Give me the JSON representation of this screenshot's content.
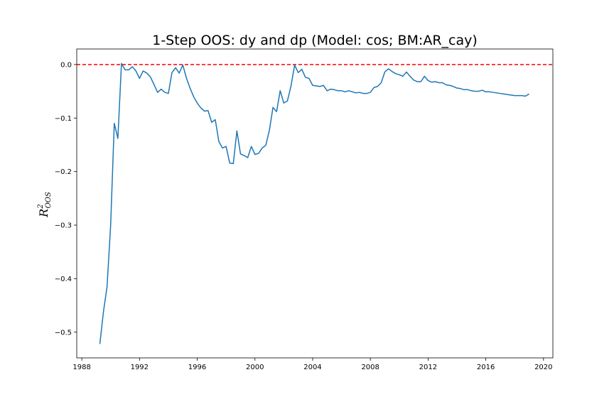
{
  "chart_data": {
    "type": "line",
    "title": "1-Step OOS: dy and dp (Model: cos; BM:AR_cay)",
    "ylabel": {
      "main": "R",
      "sup": "2",
      "sub": "OOS"
    },
    "xlabel": "",
    "xlim": [
      1987.65,
      2020.65
    ],
    "ylim": [
      -0.548,
      0.029
    ],
    "xticks": [
      "1988",
      "1992",
      "1996",
      "2000",
      "2004",
      "2008",
      "2012",
      "2016",
      "2020"
    ],
    "yticks": [
      "0.0",
      "−0.1",
      "−0.2",
      "−0.3",
      "−0.4",
      "−0.5"
    ],
    "grid": false,
    "legend": "none",
    "reference_line": {
      "y": 0.0,
      "color": "#ff0000",
      "style": "dashed"
    },
    "series": [
      {
        "color": "#1f77b4",
        "x": [
          1989.25,
          1989.5,
          1989.75,
          1990.0,
          1990.25,
          1990.5,
          1990.75,
          1991.0,
          1991.25,
          1991.5,
          1991.75,
          1992.0,
          1992.25,
          1992.5,
          1992.75,
          1993.0,
          1993.25,
          1993.5,
          1993.75,
          1994.0,
          1994.25,
          1994.5,
          1994.75,
          1995.0,
          1995.25,
          1995.5,
          1995.75,
          1996.0,
          1996.25,
          1996.5,
          1996.75,
          1997.0,
          1997.25,
          1997.5,
          1997.75,
          1998.0,
          1998.25,
          1998.5,
          1998.75,
          1999.0,
          1999.25,
          1999.5,
          1999.75,
          2000.0,
          2000.25,
          2000.5,
          2000.75,
          2001.0,
          2001.25,
          2001.5,
          2001.75,
          2002.0,
          2002.25,
          2002.5,
          2002.75,
          2003.0,
          2003.25,
          2003.5,
          2003.75,
          2004.0,
          2004.25,
          2004.5,
          2004.75,
          2005.0,
          2005.25,
          2005.5,
          2005.75,
          2006.0,
          2006.25,
          2006.5,
          2006.75,
          2007.0,
          2007.25,
          2007.5,
          2007.75,
          2008.0,
          2008.25,
          2008.5,
          2008.75,
          2009.0,
          2009.25,
          2009.5,
          2009.75,
          2010.0,
          2010.25,
          2010.5,
          2010.75,
          2011.0,
          2011.25,
          2011.5,
          2011.75,
          2012.0,
          2012.25,
          2012.5,
          2012.75,
          2013.0,
          2013.25,
          2013.5,
          2013.75,
          2014.0,
          2014.25,
          2014.5,
          2014.75,
          2015.0,
          2015.25,
          2015.5,
          2015.75,
          2016.0,
          2016.25,
          2016.5,
          2016.75,
          2017.0,
          2017.25,
          2017.5,
          2017.75,
          2018.0,
          2018.25,
          2018.5,
          2018.75,
          2019.0
        ],
        "y": [
          -0.522,
          -0.462,
          -0.415,
          -0.3,
          -0.11,
          -0.138,
          0.002,
          -0.01,
          -0.01,
          -0.004,
          -0.012,
          -0.026,
          -0.012,
          -0.016,
          -0.023,
          -0.037,
          -0.052,
          -0.046,
          -0.052,
          -0.054,
          -0.015,
          -0.006,
          -0.016,
          -0.001,
          -0.025,
          -0.044,
          -0.06,
          -0.072,
          -0.081,
          -0.087,
          -0.086,
          -0.108,
          -0.103,
          -0.144,
          -0.156,
          -0.153,
          -0.184,
          -0.185,
          -0.124,
          -0.167,
          -0.17,
          -0.174,
          -0.153,
          -0.168,
          -0.166,
          -0.156,
          -0.151,
          -0.123,
          -0.08,
          -0.088,
          -0.049,
          -0.072,
          -0.068,
          -0.04,
          -0.001,
          -0.015,
          -0.009,
          -0.024,
          -0.026,
          -0.039,
          -0.04,
          -0.041,
          -0.039,
          -0.049,
          -0.046,
          -0.047,
          -0.049,
          -0.049,
          -0.051,
          -0.049,
          -0.051,
          -0.053,
          -0.052,
          -0.054,
          -0.054,
          -0.052,
          -0.043,
          -0.041,
          -0.034,
          -0.014,
          -0.008,
          -0.013,
          -0.017,
          -0.019,
          -0.022,
          -0.014,
          -0.022,
          -0.029,
          -0.032,
          -0.032,
          -0.022,
          -0.03,
          -0.033,
          -0.032,
          -0.034,
          -0.034,
          -0.038,
          -0.039,
          -0.041,
          -0.044,
          -0.045,
          -0.047,
          -0.047,
          -0.049,
          -0.05,
          -0.05,
          -0.048,
          -0.051,
          -0.051,
          -0.052,
          -0.053,
          -0.054,
          -0.055,
          -0.056,
          -0.057,
          -0.058,
          -0.058,
          -0.058,
          -0.059,
          -0.055
        ]
      }
    ]
  }
}
